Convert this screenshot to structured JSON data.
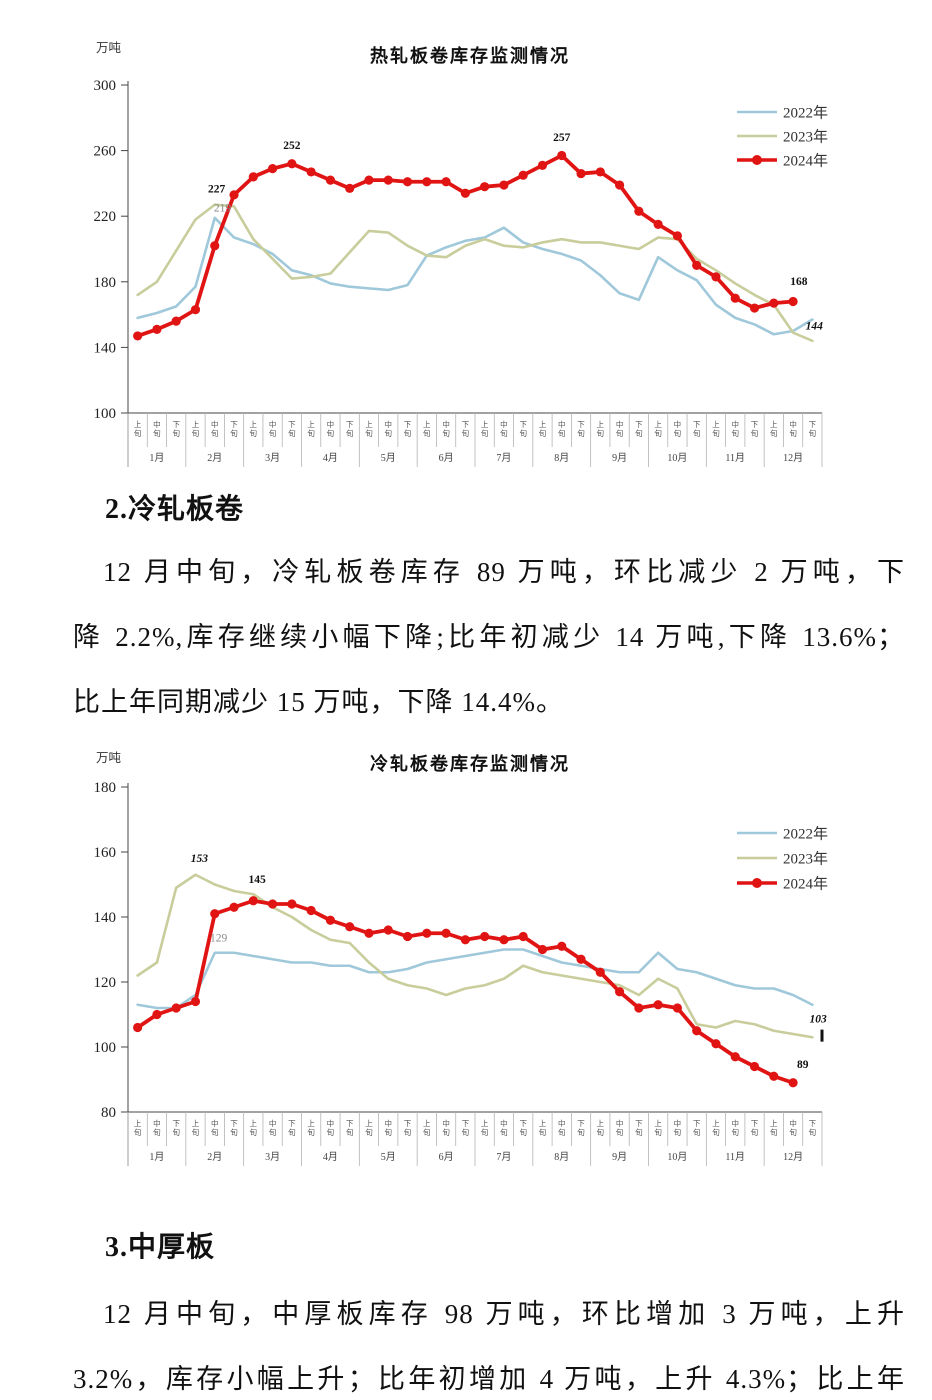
{
  "document": {
    "section2": {
      "heading": "2.冷轧板卷",
      "lines": [
        "12 月中旬，冷轧板卷库存 89 万吨，环比减少 2 万吨，下",
        "降 2.2%,库存继续小幅下降;比年初减少 14 万吨,下降 13.6%；",
        "比上年同期减少 15 万吨，下降 14.4%。"
      ]
    },
    "section3": {
      "heading": "3.中厚板",
      "lines": [
        "12 月中旬，中厚板库存 98 万吨，环比增加 3 万吨，上升",
        "3.2%，库存小幅上升；比年初增加 4 万吨，上升 4.3%；比上年"
      ]
    }
  },
  "colors": {
    "series2022": "#9fc8da",
    "series2023": "#c8cd9b",
    "series2024": "#e11414",
    "axis": "#444444",
    "table_line": "#b3b3b3",
    "tick_text": "#222222",
    "gray_label": "#8a8a8a"
  },
  "chart_data": [
    {
      "type": "line",
      "title": "热轧板卷库存监测情况",
      "unit": "万吨",
      "ylim": [
        100,
        300
      ],
      "yticks": [
        300,
        260,
        220,
        180,
        140,
        100
      ],
      "months": [
        "1月",
        "2月",
        "3月",
        "4月",
        "5月",
        "6月",
        "7月",
        "8月",
        "9月",
        "10月",
        "11月",
        "12月"
      ],
      "periods": [
        "上旬",
        "中旬",
        "下旬"
      ],
      "legend_position": "right-top",
      "series": [
        {
          "name": "2022年",
          "color": "series2022",
          "marker": false,
          "values": [
            158,
            161,
            165,
            177,
            219,
            207,
            203,
            197,
            187,
            184,
            179,
            177,
            176,
            175,
            178,
            196,
            201,
            205,
            207,
            213,
            204,
            200,
            197,
            193,
            184,
            173,
            169,
            195,
            187,
            181,
            166,
            158,
            154,
            148,
            150,
            157
          ]
        },
        {
          "name": "2023年",
          "color": "series2023",
          "marker": false,
          "values": [
            172,
            180,
            199,
            218,
            227,
            226,
            206,
            194,
            182,
            183,
            185,
            198,
            211,
            210,
            202,
            196,
            195,
            202,
            206,
            202,
            201,
            204,
            206,
            204,
            204,
            202,
            200,
            207,
            206,
            194,
            187,
            179,
            172,
            166,
            149,
            144
          ]
        },
        {
          "name": "2024年",
          "color": "series2024",
          "marker": true,
          "values": [
            147,
            151,
            156,
            163,
            202,
            233,
            244,
            249,
            252,
            247,
            242,
            237,
            242,
            242,
            241,
            241,
            241,
            234,
            238,
            239,
            245,
            251,
            257,
            246,
            247,
            239,
            223,
            215,
            208,
            190,
            183,
            170,
            164,
            167,
            168
          ]
        }
      ],
      "annotations": [
        {
          "text": "227",
          "xi": 4.1,
          "v": 234.5,
          "style": "bold"
        },
        {
          "text": "219",
          "xi": 4.4,
          "v": 223,
          "style": "gray"
        },
        {
          "text": "252",
          "xi": 8.0,
          "v": 261,
          "style": "bold"
        },
        {
          "text": "257",
          "xi": 22.0,
          "v": 266,
          "style": "bold"
        },
        {
          "text": "168",
          "xi": 34.3,
          "v": 178,
          "style": "bold"
        },
        {
          "text": "144",
          "xi": 35.1,
          "v": 151,
          "style": "italic"
        }
      ]
    },
    {
      "type": "line",
      "title": "冷轧板卷库存监测情况",
      "unit": "万吨",
      "ylim": [
        80,
        180
      ],
      "yticks": [
        180,
        160,
        140,
        120,
        100,
        80
      ],
      "months": [
        "1月",
        "2月",
        "3月",
        "4月",
        "5月",
        "6月",
        "7月",
        "8月",
        "9月",
        "10月",
        "11月",
        "12月"
      ],
      "periods": [
        "上旬",
        "中旬",
        "下旬"
      ],
      "legend_position": "right-top",
      "series": [
        {
          "name": "2022年",
          "color": "series2022",
          "marker": false,
          "values": [
            113,
            112,
            112,
            116,
            129,
            129,
            128,
            127,
            126,
            126,
            125,
            125,
            123,
            123,
            124,
            126,
            127,
            128,
            129,
            130,
            130,
            128,
            126,
            125,
            124,
            123,
            123,
            129,
            124,
            123,
            121,
            119,
            118,
            118,
            116,
            113
          ]
        },
        {
          "name": "2023年",
          "color": "series2023",
          "marker": false,
          "values": [
            122,
            126,
            149,
            153,
            150,
            148,
            147,
            143,
            140,
            136,
            133,
            132,
            126,
            121,
            119,
            118,
            116,
            118,
            119,
            121,
            125,
            123,
            122,
            121,
            120,
            119,
            116,
            121,
            118,
            107,
            106,
            108,
            107,
            105,
            104,
            103
          ]
        },
        {
          "name": "2024年",
          "color": "series2024",
          "marker": true,
          "values": [
            106,
            110,
            112,
            114,
            141,
            143,
            145,
            144,
            144,
            142,
            139,
            137,
            135,
            136,
            134,
            135,
            135,
            133,
            134,
            133,
            134,
            130,
            131,
            127,
            123,
            117,
            112,
            113,
            112,
            105,
            101,
            97,
            94,
            91,
            89
          ]
        }
      ],
      "annotations": [
        {
          "text": "153",
          "xi": 3.2,
          "v": 157,
          "style": "italic"
        },
        {
          "text": "145",
          "xi": 6.2,
          "v": 150.5,
          "style": "bold"
        },
        {
          "text": "129",
          "xi": 4.2,
          "v": 132.5,
          "style": "gray"
        },
        {
          "text": "103",
          "xi": 35.3,
          "v": 107.5,
          "style": "italic"
        },
        {
          "text": "",
          "xi": 35.5,
          "v": 103.5,
          "style": "tick"
        },
        {
          "text": "89",
          "xi": 34.5,
          "v": 93.5,
          "style": "bold"
        }
      ]
    }
  ]
}
